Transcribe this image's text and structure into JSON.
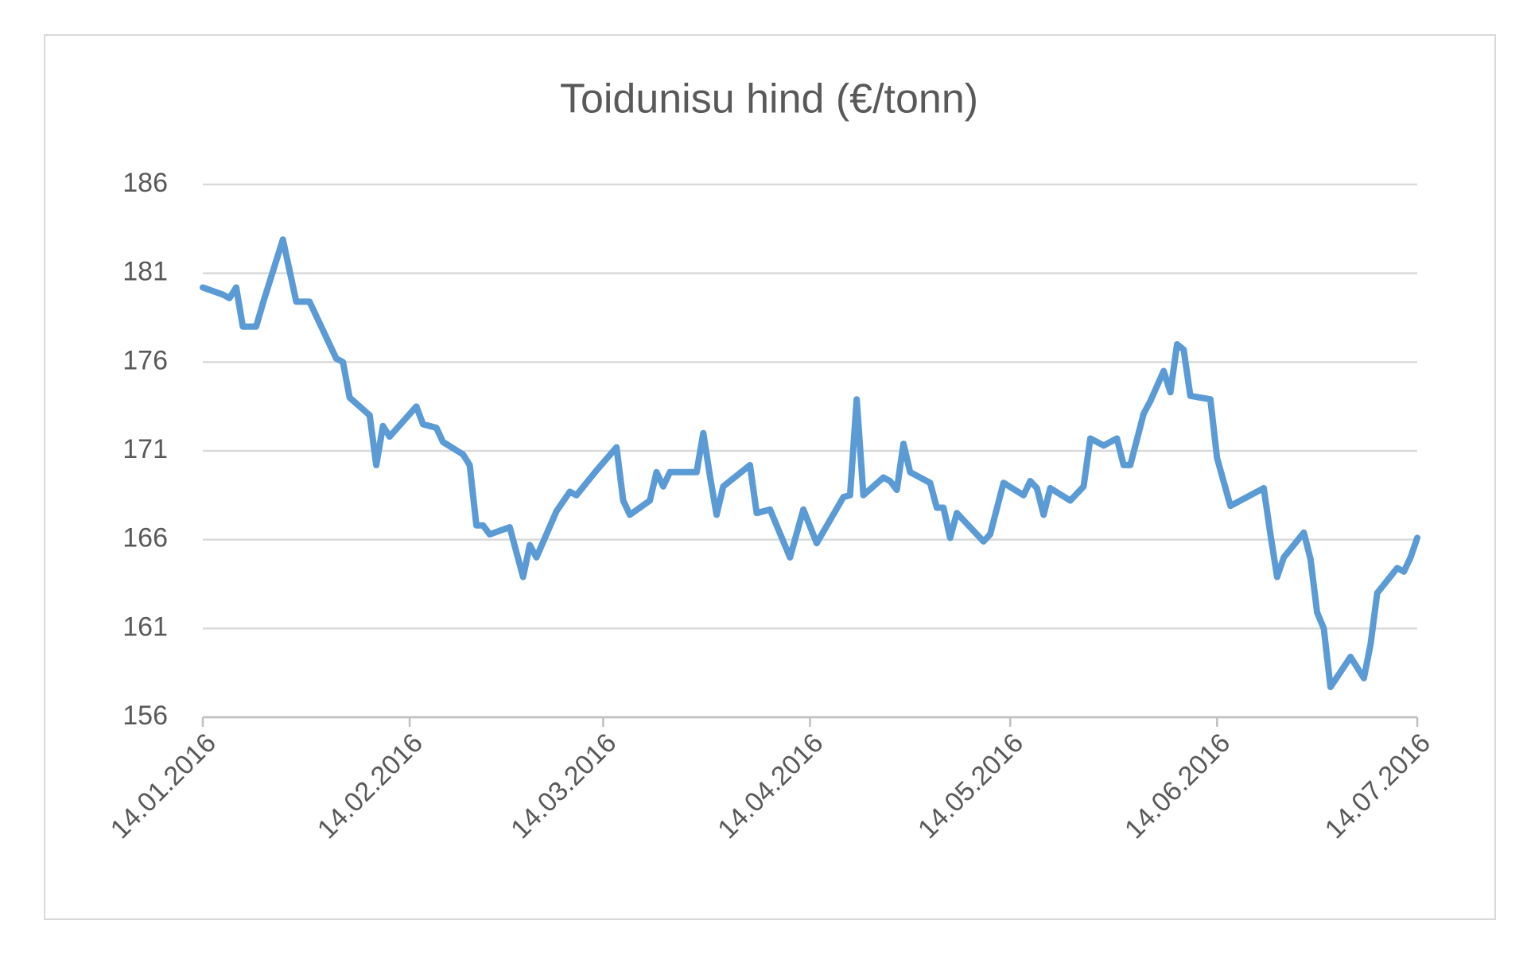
{
  "chart_data": {
    "type": "line",
    "title": "Toidunisu hind (€/tonn)",
    "color": "#5b9bd5",
    "grid": true,
    "x": [
      "14.01.2016",
      "17.01.2016",
      "18.01.2016",
      "19.01.2016",
      "20.01.2016",
      "22.01.2016",
      "23.01.2016",
      "26.01.2016",
      "28.01.2016",
      "30.01.2016",
      "03.02.2016",
      "04.02.2016",
      "05.02.2016",
      "08.02.2016",
      "09.02.2016",
      "10.02.2016",
      "11.02.2016",
      "15.02.2016",
      "16.02.2016",
      "18.02.2016",
      "19.02.2016",
      "22.02.2016",
      "23.02.2016",
      "24.02.2016",
      "25.02.2016",
      "26.02.2016",
      "29.02.2016",
      "02.03.2016",
      "03.03.2016",
      "04.03.2016",
      "07.03.2016",
      "09.03.2016",
      "10.03.2016",
      "13.03.2016",
      "16.03.2016",
      "17.03.2016",
      "18.03.2016",
      "21.03.2016",
      "22.03.2016",
      "23.03.2016",
      "24.03.2016",
      "28.03.2016",
      "29.03.2016",
      "30.03.2016",
      "31.03.2016",
      "01.04.2016",
      "05.04.2016",
      "06.04.2016",
      "08.04.2016",
      "11.04.2016",
      "13.04.2016",
      "15.04.2016",
      "19.04.2016",
      "20.04.2016",
      "21.04.2016",
      "22.04.2016",
      "25.04.2016",
      "26.04.2016",
      "27.04.2016",
      "28.04.2016",
      "29.04.2016",
      "02.05.2016",
      "03.05.2016",
      "04.05.2016",
      "05.05.2016",
      "06.05.2016",
      "10.05.2016",
      "11.05.2016",
      "13.05.2016",
      "16.05.2016",
      "17.05.2016",
      "18.05.2016",
      "19.05.2016",
      "20.05.2016",
      "23.05.2016",
      "25.05.2016",
      "26.05.2016",
      "28.05.2016",
      "30.05.2016",
      "31.05.2016",
      "01.06.2016",
      "03.06.2016",
      "04.06.2016",
      "06.06.2016",
      "07.06.2016",
      "08.06.2016",
      "09.06.2016",
      "10.06.2016",
      "13.06.2016",
      "14.06.2016",
      "16.06.2016",
      "21.06.2016",
      "22.06.2016",
      "23.06.2016",
      "24.06.2016",
      "27.06.2016",
      "28.06.2016",
      "29.06.2016",
      "30.06.2016",
      "01.07.2016",
      "04.07.2016",
      "06.07.2016",
      "07.07.2016",
      "08.07.2016",
      "11.07.2016",
      "12.07.2016",
      "13.07.2016",
      "14.07.2016"
    ],
    "values": [
      180.2,
      179.8,
      179.6,
      180.2,
      178,
      178,
      179.3,
      182.9,
      179.4,
      179.4,
      176.2,
      176,
      174,
      173,
      170.2,
      172.4,
      171.8,
      173.5,
      172.5,
      172.3,
      171.5,
      170.8,
      170.2,
      166.8,
      166.8,
      166.3,
      166.7,
      163.9,
      165.7,
      165,
      167.6,
      168.7,
      168.5,
      169.9,
      171.2,
      168.2,
      167.4,
      168.2,
      169.8,
      169,
      169.8,
      169.8,
      172,
      169.6,
      167.4,
      169,
      170.2,
      167.5,
      167.7,
      165,
      167.7,
      165.8,
      168.4,
      168.5,
      173.9,
      168.5,
      169.5,
      169.3,
      168.8,
      171.4,
      169.8,
      169.2,
      167.8,
      167.8,
      166.1,
      167.5,
      165.9,
      166.3,
      169.2,
      168.5,
      169.3,
      168.9,
      167.4,
      168.9,
      168.2,
      169,
      171.7,
      171.3,
      171.7,
      170.2,
      170.2,
      173.1,
      173.8,
      175.5,
      174.3,
      177,
      176.7,
      174.1,
      173.9,
      170.6,
      167.9,
      168.9,
      166.3,
      163.9,
      165,
      166.4,
      164.9,
      161.9,
      161,
      157.7,
      159.4,
      158.2,
      160.1,
      163,
      164.4,
      164.2,
      165,
      166.1
    ],
    "xlim": [
      "14.01.2016",
      "14.07.2016"
    ],
    "xticks": [
      "14.01.2016",
      "14.02.2016",
      "14.03.2016",
      "14.04.2016",
      "14.05.2016",
      "14.06.2016",
      "14.07.2016"
    ],
    "ylim": [
      156,
      186
    ],
    "yticks": [
      156,
      161,
      166,
      171,
      176,
      181,
      186
    ]
  }
}
